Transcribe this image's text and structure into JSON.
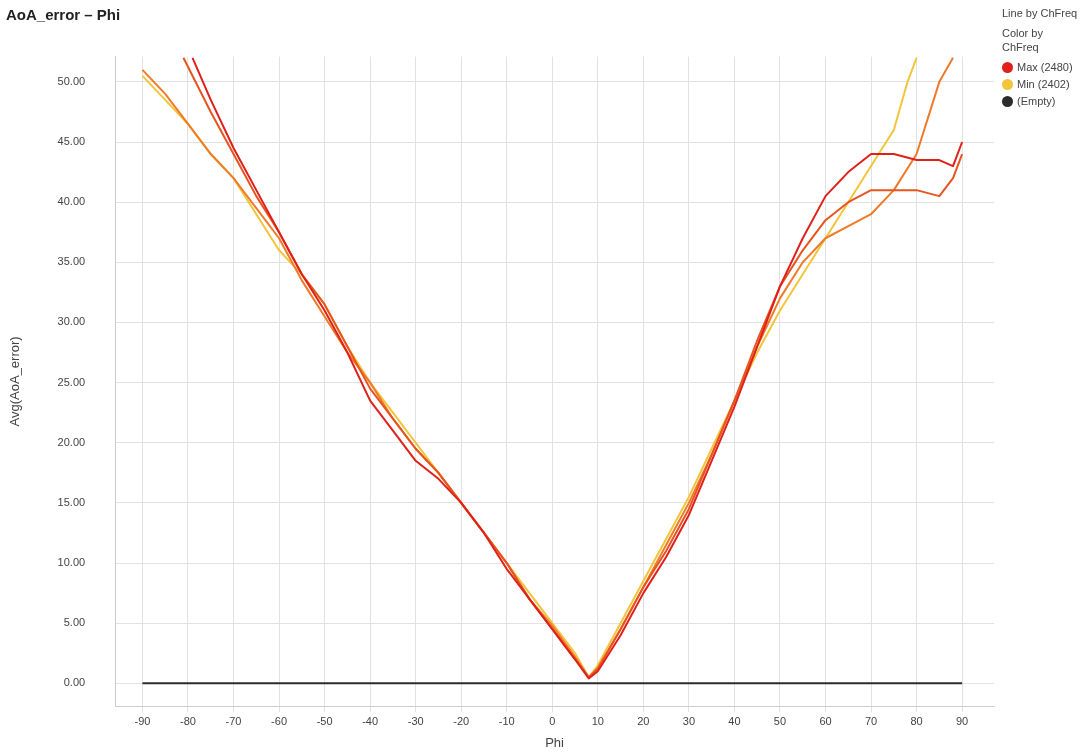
{
  "chart_data": {
    "type": "line",
    "title": "AoA_error – Phi",
    "xlabel": "Phi",
    "ylabel": "Avg(AoA_error)",
    "legend_title": "Color by ChFreq",
    "annotations": [
      "Line by ChFreq"
    ],
    "xlim": [
      -96,
      97
    ],
    "xticks": [
      -90,
      -80,
      -70,
      -60,
      -50,
      -40,
      -30,
      -20,
      -10,
      0,
      10,
      20,
      30,
      40,
      50,
      60,
      70,
      80,
      90
    ],
    "ylim": [
      -1.9,
      52.1
    ],
    "yticks": [
      {
        "value": 0,
        "label": "0.00"
      },
      {
        "value": 5,
        "label": "5.00"
      },
      {
        "value": 10,
        "label": "10.00"
      },
      {
        "value": 15,
        "label": "15.00"
      },
      {
        "value": 20,
        "label": "20.00"
      },
      {
        "value": 25,
        "label": "25.00"
      },
      {
        "value": 30,
        "label": "30.00"
      },
      {
        "value": 35,
        "label": "35.00"
      },
      {
        "value": 40,
        "label": "40.00"
      },
      {
        "value": 45,
        "label": "45.00"
      },
      {
        "value": 50,
        "label": "50.00"
      }
    ],
    "grid": true,
    "legend": "top right",
    "marker": "none",
    "line_style": "solid",
    "series": [
      {
        "color": "#e0201b",
        "name": "Max (2480)",
        "x": [
          -79,
          -75,
          -70,
          -65,
          -60,
          -55,
          -50,
          -45,
          -40,
          -35,
          -30,
          -25,
          -20,
          -15,
          -10,
          -5,
          0,
          5,
          8,
          10,
          15,
          20,
          25,
          30,
          35,
          40,
          45,
          50,
          55,
          60,
          65,
          70,
          75,
          80,
          85,
          88,
          90
        ],
        "values": [
          52,
          48.5,
          44.5,
          41,
          37.5,
          34,
          31,
          27.5,
          23.5,
          21,
          18.5,
          17,
          15,
          12.5,
          9.5,
          7,
          4.5,
          2,
          0.4,
          1,
          4,
          7.5,
          10.5,
          14,
          18.5,
          23,
          28,
          33,
          37,
          40.5,
          42.5,
          44,
          44,
          43.5,
          43.5,
          43,
          45
        ]
      },
      {
        "color": "#e8541f",
        "x": [
          -81,
          -75,
          -70,
          -65,
          -60,
          -55,
          -50,
          -45,
          -40,
          -35,
          -30,
          -25,
          -20,
          -15,
          -10,
          -5,
          0,
          5,
          8,
          10,
          15,
          20,
          25,
          30,
          35,
          40,
          45,
          50,
          55,
          60,
          65,
          70,
          75,
          80,
          85,
          88,
          90
        ],
        "values": [
          52,
          47.5,
          44,
          40.5,
          37.5,
          34,
          31.5,
          28,
          24.5,
          22,
          19.5,
          17.5,
          15,
          12.5,
          10,
          7,
          4.5,
          2,
          0.5,
          1.2,
          4.5,
          8,
          11,
          14.5,
          19,
          23.5,
          28.5,
          33,
          36,
          38.5,
          40,
          41,
          41,
          41,
          40.5,
          42,
          44
        ]
      },
      {
        "color": "#ef7a27",
        "x": [
          -90,
          -85,
          -80,
          -75,
          -70,
          -65,
          -60,
          -55,
          -50,
          -45,
          -40,
          -35,
          -30,
          -25,
          -20,
          -15,
          -10,
          -5,
          0,
          5,
          8,
          10,
          15,
          20,
          25,
          30,
          35,
          40,
          45,
          50,
          55,
          60,
          65,
          70,
          75,
          80,
          85,
          88
        ],
        "values": [
          51,
          49,
          46.5,
          44,
          42,
          39.5,
          37,
          33.5,
          30.5,
          27.5,
          25,
          22,
          19.5,
          17.5,
          15,
          12.5,
          10,
          7,
          4.8,
          2.2,
          0.5,
          1.3,
          4.5,
          8,
          11.5,
          15,
          19,
          23.5,
          28,
          32,
          35,
          37,
          38,
          39,
          41,
          44,
          50,
          52
        ]
      },
      {
        "color": "#f2c53a",
        "name": "Min (2402)",
        "x": [
          -90,
          -85,
          -80,
          -75,
          -70,
          -65,
          -60,
          -55,
          -50,
          -45,
          -40,
          -35,
          -30,
          -25,
          -20,
          -15,
          -10,
          -5,
          0,
          5,
          8,
          10,
          15,
          20,
          25,
          30,
          35,
          40,
          45,
          50,
          55,
          60,
          65,
          70,
          75,
          78,
          80
        ],
        "values": [
          50.5,
          48.5,
          46.5,
          44,
          42,
          39,
          36,
          34,
          31.5,
          28,
          25,
          22.5,
          20,
          17.5,
          15,
          12.5,
          10,
          7.5,
          5,
          2.5,
          0.5,
          1.5,
          5,
          8.5,
          12,
          15.5,
          19.5,
          23.5,
          27.5,
          31,
          34,
          37,
          40,
          43,
          46,
          50,
          52
        ]
      },
      {
        "color": "#2b2b2b",
        "name": "(Empty)",
        "x": [
          -90,
          90
        ],
        "values": [
          0,
          0
        ]
      }
    ]
  }
}
